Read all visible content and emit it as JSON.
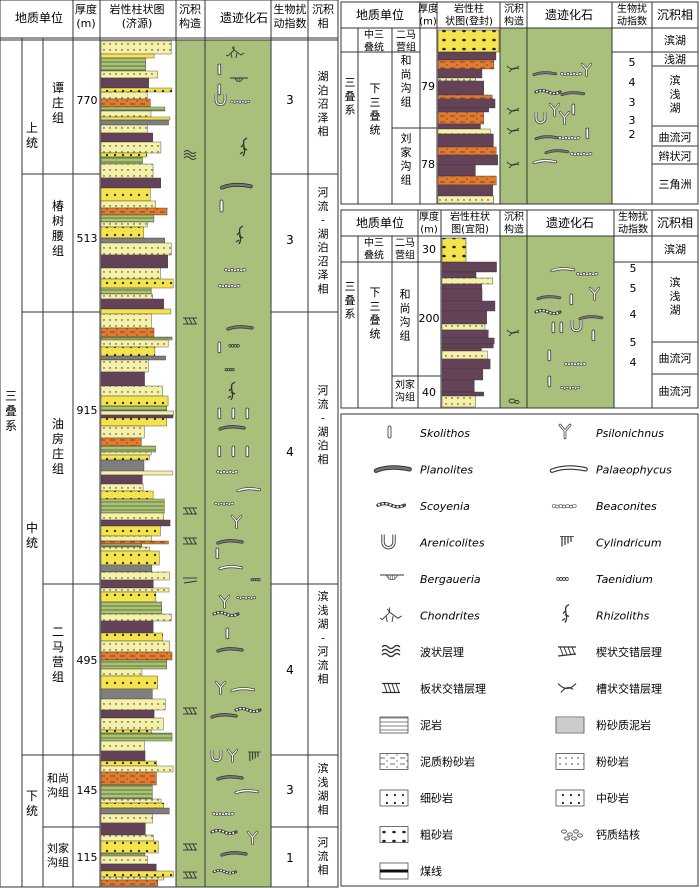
{
  "colors": {
    "lith_pale": "#f6f1a8",
    "lith_yellow": "#f4e34c",
    "lith_orange": "#e37b2e",
    "lith_purple": "#6a3a58",
    "lith_green": "#a8c46f",
    "lith_gray": "#8f8f8f",
    "column_green": "#a9c07c",
    "column_green_dark": "#95ae68",
    "border": "#333333"
  },
  "jiyuan": {
    "headers": {
      "unit": "地质单位",
      "thickness": "厚度\n(m)",
      "lith": "岩性柱状图\n(济源)",
      "struct": "沉积\n构造",
      "trace": "遗迹化石",
      "bio": "生物扰\n动指数",
      "facies": "沉积\n相"
    },
    "system": "三\n叠\n系",
    "series": [
      "上\n\n统",
      "中\n\n统",
      "下\n\n统"
    ],
    "formations": [
      {
        "name": "谭\n庄\n组",
        "thickness": "770",
        "bio": "3",
        "facies": "湖\n泊\n沼\n泽\n相"
      },
      {
        "name": "椿\n树\n腰\n组",
        "thickness": "513",
        "bio": "3",
        "facies": "河\n流\n-\n湖\n泊\n沼\n泽\n相"
      },
      {
        "name": "油\n房\n庄\n组",
        "thickness": "915",
        "bio": "4",
        "facies": "河\n流\n-\n湖\n泊\n相"
      },
      {
        "name": "二\n马\n营\n组",
        "thickness": "495",
        "bio": "4",
        "facies": "滨\n浅\n湖\n-\n河\n流\n相"
      },
      {
        "name": "和尚\n沟组",
        "thickness": "145",
        "bio": "3",
        "facies": "滨\n浅\n湖\n相"
      },
      {
        "name": "刘家\n沟组",
        "thickness": "115",
        "bio": "1",
        "facies": "河\n流\n相"
      }
    ]
  },
  "dengfeng": {
    "headers": {
      "unit": "地质单位",
      "thickness": "厚度\n(m)",
      "lith": "岩性柱\n状图(登封)",
      "struct": "沉积\n构造",
      "trace": "遗迹化石",
      "bio": "生物扰\n动指数",
      "facies": "沉积相"
    },
    "top_series": "中三\n叠统",
    "top_formation": "二马\n营组",
    "system": "三\n\n叠\n\n系",
    "series": "下\n三\n叠\n统",
    "formations": [
      {
        "name": "和\n尚\n沟\n组",
        "thickness": "79"
      },
      {
        "name": "刘\n家\n沟\n组",
        "thickness": "78"
      }
    ],
    "bio_values": [
      "5",
      "4",
      "3",
      "3",
      "2"
    ],
    "facies": [
      "滨湖",
      "浅湖",
      "滨\n浅\n湖",
      "曲流河",
      "辫状河",
      "三角洲"
    ]
  },
  "yiyang": {
    "headers": {
      "unit": "地质单位",
      "thickness": "厚度\n(m)",
      "lith": "岩性柱状\n图(宜阳)",
      "struct": "沉积\n构造",
      "trace": "遗迹化石",
      "bio": "生物扰\n动指数",
      "facies": "沉积相"
    },
    "top_series": "中三\n叠统",
    "top_formation": "二马\n营组",
    "top_thickness": "30",
    "system": "三\n\n叠\n\n系",
    "series": "下\n三\n叠\n统",
    "formations": [
      {
        "name": "和\n尚\n沟\n组",
        "thickness": "200"
      },
      {
        "name": "刘家\n沟组",
        "thickness": "40"
      }
    ],
    "bio_values": [
      "5",
      "5",
      "4",
      "5",
      "4"
    ],
    "facies": [
      "滨湖",
      "滨\n浅\n湖",
      "曲流河",
      "曲流河"
    ]
  },
  "legend": [
    {
      "label": "Skolithos",
      "italic": true,
      "icon": "skolithos-icon"
    },
    {
      "label": "Psilonichnus",
      "italic": true,
      "icon": "psilonichnus-icon"
    },
    {
      "label": "Planolites",
      "italic": true,
      "icon": "planolites-icon"
    },
    {
      "label": "Palaeophycus",
      "italic": true,
      "icon": "palaeophycus-icon"
    },
    {
      "label": "Scoyenia",
      "italic": true,
      "icon": "scoyenia-icon"
    },
    {
      "label": "Beaconites",
      "italic": true,
      "icon": "beaconites-icon"
    },
    {
      "label": "Arenicolites",
      "italic": true,
      "icon": "arenicolites-icon"
    },
    {
      "label": "Cylindricum",
      "italic": true,
      "icon": "cylindricum-icon"
    },
    {
      "label": "Bergaueria",
      "italic": true,
      "icon": "bergaueria-icon"
    },
    {
      "label": "Taenidium",
      "italic": true,
      "icon": "taenidium-icon"
    },
    {
      "label": "Chondrites",
      "italic": true,
      "icon": "chondrites-icon"
    },
    {
      "label": "Rhizoliths",
      "italic": true,
      "icon": "rhizoliths-icon"
    },
    {
      "label": "波状层理",
      "italic": false,
      "icon": "wavy-bedding-icon"
    },
    {
      "label": "楔状交错层理",
      "italic": false,
      "icon": "wedge-cross-bedding-icon"
    },
    {
      "label": "板状交错层理",
      "italic": false,
      "icon": "tabular-cross-bedding-icon"
    },
    {
      "label": "槽状交错层理",
      "italic": false,
      "icon": "trough-cross-bedding-icon"
    },
    {
      "label": "泥岩",
      "italic": false,
      "icon": "mudstone-icon"
    },
    {
      "label": "粉砂质泥岩",
      "italic": false,
      "icon": "silty-mudstone-icon"
    },
    {
      "label": "泥质粉砂岩",
      "italic": false,
      "icon": "argillaceous-siltstone-icon"
    },
    {
      "label": "粉砂岩",
      "italic": false,
      "icon": "siltstone-icon"
    },
    {
      "label": "细砂岩",
      "italic": false,
      "icon": "fine-sandstone-icon"
    },
    {
      "label": "中砂岩",
      "italic": false,
      "icon": "medium-sandstone-icon"
    },
    {
      "label": "粗砂岩",
      "italic": false,
      "icon": "coarse-sandstone-icon"
    },
    {
      "label": "钙质结核",
      "italic": false,
      "icon": "calcareous-nodule-icon"
    },
    {
      "label": "煤线",
      "italic": false,
      "icon": "coal-seam-icon"
    }
  ]
}
